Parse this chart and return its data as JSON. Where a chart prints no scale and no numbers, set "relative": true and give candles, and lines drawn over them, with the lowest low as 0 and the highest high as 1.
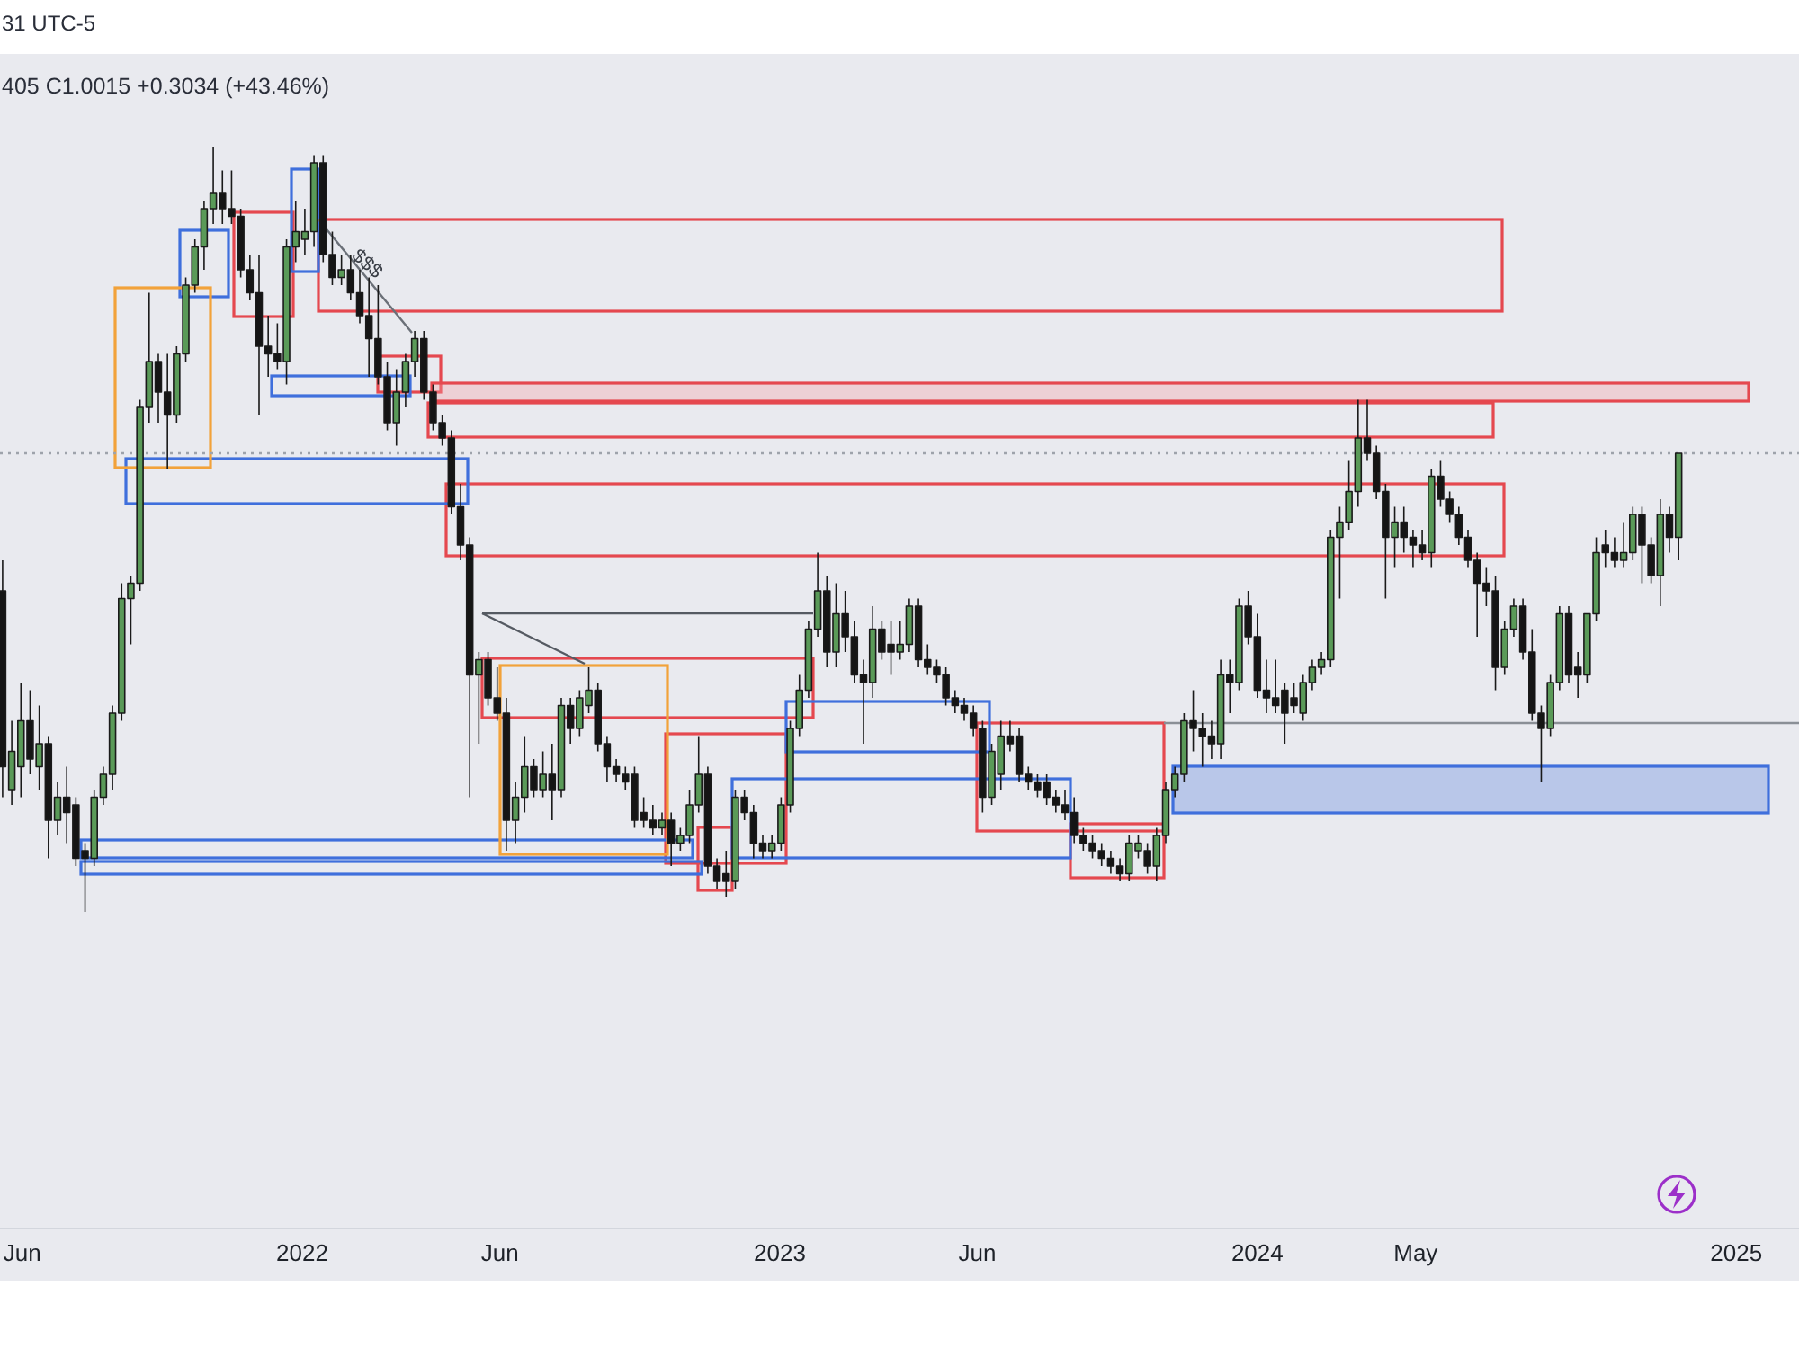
{
  "chart_data": {
    "type": "candlestick",
    "relative": true,
    "tick_labels": "x",
    "xlim": [
      "2021-05-15",
      "2025-02-18"
    ],
    "xticks": [
      {
        "value": "2021-06-01",
        "label": "Jun"
      },
      {
        "value": "2022-01-01",
        "label": "2022"
      },
      {
        "value": "2022-06-01",
        "label": "Jun"
      },
      {
        "value": "2023-01-01",
        "label": "2023"
      },
      {
        "value": "2023-06-01",
        "label": "Jun"
      },
      {
        "value": "2024-01-01",
        "label": "2024"
      },
      {
        "value": "2024-05-01",
        "label": "May"
      },
      {
        "value": "2025-01-01",
        "label": "2025"
      }
    ],
    "x": [
      "2021-05-17",
      "2021-05-24",
      "2021-05-31",
      "2021-06-07",
      "2021-06-14",
      "2021-06-21",
      "2021-06-28",
      "2021-07-05",
      "2021-07-12",
      "2021-07-19",
      "2021-07-26",
      "2021-08-02",
      "2021-08-09",
      "2021-08-16",
      "2021-08-23",
      "2021-08-30",
      "2021-09-06",
      "2021-09-13",
      "2021-09-20",
      "2021-09-27",
      "2021-10-04",
      "2021-10-11",
      "2021-10-18",
      "2021-10-25",
      "2021-11-01",
      "2021-11-08",
      "2021-11-15",
      "2021-11-22",
      "2021-11-29",
      "2021-12-06",
      "2021-12-13",
      "2021-12-20",
      "2021-12-27",
      "2022-01-03",
      "2022-01-10",
      "2022-01-17",
      "2022-01-24",
      "2022-01-31",
      "2022-02-07",
      "2022-02-14",
      "2022-02-21",
      "2022-02-28",
      "2022-03-07",
      "2022-03-14",
      "2022-03-21",
      "2022-03-28",
      "2022-04-04",
      "2022-04-11",
      "2022-04-18",
      "2022-04-25",
      "2022-05-02",
      "2022-05-09",
      "2022-05-16",
      "2022-05-23",
      "2022-05-30",
      "2022-06-06",
      "2022-06-13",
      "2022-06-20",
      "2022-06-27",
      "2022-07-04",
      "2022-07-11",
      "2022-07-18",
      "2022-07-25",
      "2022-08-01",
      "2022-08-08",
      "2022-08-15",
      "2022-08-22",
      "2022-08-29",
      "2022-09-05",
      "2022-09-12",
      "2022-09-19",
      "2022-09-26",
      "2022-10-03",
      "2022-10-10",
      "2022-10-17",
      "2022-10-24",
      "2022-10-31",
      "2022-11-07",
      "2022-11-14",
      "2022-11-21",
      "2022-11-28",
      "2022-12-05",
      "2022-12-12",
      "2022-12-19",
      "2022-12-26",
      "2023-01-02",
      "2023-01-09",
      "2023-01-16",
      "2023-01-23",
      "2023-01-30",
      "2023-02-06",
      "2023-02-13",
      "2023-02-20",
      "2023-02-27",
      "2023-03-06",
      "2023-03-13",
      "2023-03-20",
      "2023-03-27",
      "2023-04-03",
      "2023-04-10",
      "2023-04-17",
      "2023-04-24",
      "2023-05-01",
      "2023-05-08",
      "2023-05-15",
      "2023-05-22",
      "2023-05-29",
      "2023-06-05",
      "2023-06-12",
      "2023-06-19",
      "2023-06-26",
      "2023-07-03",
      "2023-07-10",
      "2023-07-17",
      "2023-07-24",
      "2023-07-31",
      "2023-08-07",
      "2023-08-14",
      "2023-08-21",
      "2023-08-28",
      "2023-09-04",
      "2023-09-11",
      "2023-09-18",
      "2023-09-25",
      "2023-10-02",
      "2023-10-09",
      "2023-10-16",
      "2023-10-23",
      "2023-10-30",
      "2023-11-06",
      "2023-11-13",
      "2023-11-20",
      "2023-11-27",
      "2023-12-04",
      "2023-12-11",
      "2023-12-18",
      "2023-12-25",
      "2024-01-01",
      "2024-01-08",
      "2024-01-15",
      "2024-01-22",
      "2024-01-29",
      "2024-02-05",
      "2024-02-12",
      "2024-02-19",
      "2024-02-26",
      "2024-03-04",
      "2024-03-11",
      "2024-03-18",
      "2024-03-25",
      "2024-04-01",
      "2024-04-08",
      "2024-04-15",
      "2024-04-22",
      "2024-04-29",
      "2024-05-06",
      "2024-05-13",
      "2024-05-20",
      "2024-05-27",
      "2024-06-03",
      "2024-06-10",
      "2024-06-17",
      "2024-06-24",
      "2024-07-01",
      "2024-07-08",
      "2024-07-15",
      "2024-07-22",
      "2024-07-29",
      "2024-08-05",
      "2024-08-12",
      "2024-08-19",
      "2024-08-26",
      "2024-09-02",
      "2024-09-09",
      "2024-09-16",
      "2024-09-23",
      "2024-09-30",
      "2024-10-07",
      "2024-10-14",
      "2024-10-21",
      "2024-10-28",
      "2024-11-04",
      "2024-11-11",
      "2024-11-18"
    ],
    "ohlc": [
      [
        0.42,
        0.46,
        0.15,
        0.19
      ],
      [
        0.16,
        0.25,
        0.14,
        0.21
      ],
      [
        0.19,
        0.3,
        0.15,
        0.25
      ],
      [
        0.25,
        0.29,
        0.18,
        0.2
      ],
      [
        0.19,
        0.27,
        0.16,
        0.22
      ],
      [
        0.22,
        0.23,
        0.07,
        0.12
      ],
      [
        0.12,
        0.17,
        0.1,
        0.15
      ],
      [
        0.15,
        0.19,
        0.09,
        0.13
      ],
      [
        0.14,
        0.15,
        0.06,
        0.07
      ],
      [
        0.08,
        0.09,
        0,
        0.07
      ],
      [
        0.07,
        0.16,
        0.06,
        0.15
      ],
      [
        0.15,
        0.19,
        0.14,
        0.18
      ],
      [
        0.18,
        0.27,
        0.16,
        0.26
      ],
      [
        0.26,
        0.43,
        0.25,
        0.41
      ],
      [
        0.41,
        0.44,
        0.35,
        0.43
      ],
      [
        0.43,
        0.67,
        0.42,
        0.66
      ],
      [
        0.66,
        0.81,
        0.64,
        0.72
      ],
      [
        0.72,
        0.73,
        0.64,
        0.68
      ],
      [
        0.68,
        0.73,
        0.58,
        0.65
      ],
      [
        0.65,
        0.74,
        0.64,
        0.73
      ],
      [
        0.73,
        0.83,
        0.72,
        0.82
      ],
      [
        0.82,
        0.88,
        0.81,
        0.87
      ],
      [
        0.87,
        0.93,
        0.84,
        0.92
      ],
      [
        0.92,
        1,
        0.9,
        0.94
      ],
      [
        0.94,
        0.97,
        0.9,
        0.92
      ],
      [
        0.92,
        0.97,
        0.9,
        0.91
      ],
      [
        0.91,
        0.92,
        0.83,
        0.84
      ],
      [
        0.84,
        0.86,
        0.8,
        0.81
      ],
      [
        0.81,
        0.86,
        0.65,
        0.74
      ],
      [
        0.74,
        0.78,
        0.7,
        0.73
      ],
      [
        0.73,
        0.77,
        0.71,
        0.72
      ],
      [
        0.72,
        0.88,
        0.69,
        0.87
      ],
      [
        0.87,
        0.93,
        0.85,
        0.89
      ],
      [
        0.88,
        0.92,
        0.86,
        0.89
      ],
      [
        0.89,
        0.99,
        0.87,
        0.98
      ],
      [
        0.98,
        0.99,
        0.85,
        0.86
      ],
      [
        0.86,
        0.89,
        0.82,
        0.83
      ],
      [
        0.83,
        0.86,
        0.82,
        0.84
      ],
      [
        0.84,
        0.86,
        0.8,
        0.81
      ],
      [
        0.81,
        0.84,
        0.77,
        0.78
      ],
      [
        0.78,
        0.83,
        0.7,
        0.75
      ],
      [
        0.75,
        0.82,
        0.69,
        0.7
      ],
      [
        0.7,
        0.72,
        0.63,
        0.64
      ],
      [
        0.64,
        0.71,
        0.61,
        0.68
      ],
      [
        0.68,
        0.73,
        0.66,
        0.72
      ],
      [
        0.72,
        0.76,
        0.7,
        0.75
      ],
      [
        0.75,
        0.76,
        0.67,
        0.68
      ],
      [
        0.68,
        0.69,
        0.63,
        0.64
      ],
      [
        0.64,
        0.65,
        0.61,
        0.62
      ],
      [
        0.62,
        0.63,
        0.52,
        0.53
      ],
      [
        0.53,
        0.56,
        0.46,
        0.48
      ],
      [
        0.48,
        0.49,
        0.15,
        0.31
      ],
      [
        0.31,
        0.34,
        0.22,
        0.33
      ],
      [
        0.33,
        0.34,
        0.27,
        0.28
      ],
      [
        0.28,
        0.32,
        0.25,
        0.26
      ],
      [
        0.26,
        0.28,
        0.08,
        0.12
      ],
      [
        0.12,
        0.17,
        0.09,
        0.15
      ],
      [
        0.15,
        0.23,
        0.13,
        0.19
      ],
      [
        0.19,
        0.2,
        0.15,
        0.16
      ],
      [
        0.16,
        0.21,
        0.15,
        0.18
      ],
      [
        0.18,
        0.22,
        0.12,
        0.16
      ],
      [
        0.16,
        0.28,
        0.15,
        0.27
      ],
      [
        0.27,
        0.28,
        0.22,
        0.24
      ],
      [
        0.24,
        0.29,
        0.23,
        0.28
      ],
      [
        0.27,
        0.32,
        0.26,
        0.29
      ],
      [
        0.29,
        0.3,
        0.21,
        0.22
      ],
      [
        0.22,
        0.23,
        0.17,
        0.19
      ],
      [
        0.19,
        0.2,
        0.17,
        0.18
      ],
      [
        0.18,
        0.19,
        0.16,
        0.17
      ],
      [
        0.18,
        0.19,
        0.11,
        0.12
      ],
      [
        0.13,
        0.15,
        0.11,
        0.12
      ],
      [
        0.12,
        0.14,
        0.1,
        0.11
      ],
      [
        0.11,
        0.13,
        0.1,
        0.12
      ],
      [
        0.12,
        0.13,
        0.06,
        0.09
      ],
      [
        0.09,
        0.11,
        0.08,
        0.1
      ],
      [
        0.1,
        0.16,
        0.09,
        0.14
      ],
      [
        0.14,
        0.23,
        0.13,
        0.18
      ],
      [
        0.18,
        0.19,
        0.05,
        0.06
      ],
      [
        0.06,
        0.07,
        0.03,
        0.04
      ],
      [
        0.05,
        0.08,
        0.02,
        0.04
      ],
      [
        0.04,
        0.16,
        0.03,
        0.15
      ],
      [
        0.15,
        0.16,
        0.12,
        0.13
      ],
      [
        0.13,
        0.14,
        0.07,
        0.09
      ],
      [
        0.09,
        0.1,
        0.07,
        0.08
      ],
      [
        0.08,
        0.1,
        0.07,
        0.09
      ],
      [
        0.09,
        0.15,
        0.08,
        0.14
      ],
      [
        0.14,
        0.25,
        0.13,
        0.24
      ],
      [
        0.24,
        0.31,
        0.23,
        0.29
      ],
      [
        0.29,
        0.38,
        0.28,
        0.37
      ],
      [
        0.37,
        0.47,
        0.36,
        0.42
      ],
      [
        0.42,
        0.44,
        0.32,
        0.34
      ],
      [
        0.34,
        0.43,
        0.32,
        0.39
      ],
      [
        0.39,
        0.42,
        0.34,
        0.36
      ],
      [
        0.36,
        0.38,
        0.3,
        0.31
      ],
      [
        0.31,
        0.33,
        0.22,
        0.3
      ],
      [
        0.3,
        0.4,
        0.28,
        0.37
      ],
      [
        0.37,
        0.38,
        0.33,
        0.34
      ],
      [
        0.35,
        0.38,
        0.31,
        0.34
      ],
      [
        0.34,
        0.38,
        0.33,
        0.35
      ],
      [
        0.35,
        0.41,
        0.34,
        0.4
      ],
      [
        0.4,
        0.41,
        0.32,
        0.33
      ],
      [
        0.33,
        0.35,
        0.31,
        0.32
      ],
      [
        0.32,
        0.33,
        0.3,
        0.31
      ],
      [
        0.31,
        0.32,
        0.27,
        0.28
      ],
      [
        0.28,
        0.29,
        0.26,
        0.27
      ],
      [
        0.27,
        0.28,
        0.25,
        0.26
      ],
      [
        0.26,
        0.27,
        0.23,
        0.24
      ],
      [
        0.24,
        0.25,
        0.13,
        0.15
      ],
      [
        0.15,
        0.22,
        0.14,
        0.21
      ],
      [
        0.18,
        0.25,
        0.16,
        0.23
      ],
      [
        0.23,
        0.25,
        0.21,
        0.22
      ],
      [
        0.23,
        0.24,
        0.17,
        0.18
      ],
      [
        0.18,
        0.19,
        0.16,
        0.17
      ],
      [
        0.17,
        0.18,
        0.15,
        0.16
      ],
      [
        0.17,
        0.18,
        0.14,
        0.15
      ],
      [
        0.15,
        0.16,
        0.13,
        0.14
      ],
      [
        0.14,
        0.16,
        0.12,
        0.13
      ],
      [
        0.13,
        0.15,
        0.09,
        0.1
      ],
      [
        0.1,
        0.11,
        0.08,
        0.09
      ],
      [
        0.09,
        0.1,
        0.07,
        0.08
      ],
      [
        0.08,
        0.09,
        0.06,
        0.07
      ],
      [
        0.07,
        0.08,
        0.05,
        0.06
      ],
      [
        0.06,
        0.07,
        0.04,
        0.05
      ],
      [
        0.05,
        0.1,
        0.04,
        0.09
      ],
      [
        0.08,
        0.1,
        0.07,
        0.09
      ],
      [
        0.08,
        0.09,
        0.05,
        0.06
      ],
      [
        0.06,
        0.11,
        0.04,
        0.1
      ],
      [
        0.1,
        0.17,
        0.09,
        0.16
      ],
      [
        0.16,
        0.19,
        0.15,
        0.18
      ],
      [
        0.18,
        0.26,
        0.17,
        0.25
      ],
      [
        0.25,
        0.29,
        0.21,
        0.24
      ],
      [
        0.24,
        0.26,
        0.19,
        0.23
      ],
      [
        0.23,
        0.25,
        0.2,
        0.22
      ],
      [
        0.22,
        0.33,
        0.2,
        0.31
      ],
      [
        0.31,
        0.33,
        0.26,
        0.3
      ],
      [
        0.3,
        0.41,
        0.29,
        0.4
      ],
      [
        0.4,
        0.42,
        0.35,
        0.36
      ],
      [
        0.36,
        0.39,
        0.28,
        0.29
      ],
      [
        0.29,
        0.33,
        0.26,
        0.28
      ],
      [
        0.28,
        0.33,
        0.26,
        0.27
      ],
      [
        0.29,
        0.3,
        0.22,
        0.26
      ],
      [
        0.28,
        0.3,
        0.26,
        0.27
      ],
      [
        0.26,
        0.31,
        0.25,
        0.3
      ],
      [
        0.3,
        0.33,
        0.29,
        0.32
      ],
      [
        0.32,
        0.34,
        0.31,
        0.33
      ],
      [
        0.33,
        0.5,
        0.32,
        0.49
      ],
      [
        0.49,
        0.53,
        0.41,
        0.51
      ],
      [
        0.51,
        0.59,
        0.5,
        0.55
      ],
      [
        0.55,
        0.67,
        0.53,
        0.62
      ],
      [
        0.62,
        0.67,
        0.59,
        0.6
      ],
      [
        0.6,
        0.61,
        0.54,
        0.55
      ],
      [
        0.55,
        0.56,
        0.41,
        0.49
      ],
      [
        0.49,
        0.53,
        0.45,
        0.51
      ],
      [
        0.51,
        0.53,
        0.47,
        0.49
      ],
      [
        0.49,
        0.5,
        0.45,
        0.48
      ],
      [
        0.48,
        0.5,
        0.46,
        0.47
      ],
      [
        0.47,
        0.58,
        0.45,
        0.57
      ],
      [
        0.57,
        0.59,
        0.53,
        0.54
      ],
      [
        0.54,
        0.55,
        0.51,
        0.52
      ],
      [
        0.52,
        0.53,
        0.48,
        0.49
      ],
      [
        0.49,
        0.5,
        0.45,
        0.46
      ],
      [
        0.46,
        0.47,
        0.36,
        0.43
      ],
      [
        0.43,
        0.45,
        0.4,
        0.42
      ],
      [
        0.42,
        0.44,
        0.29,
        0.32
      ],
      [
        0.32,
        0.38,
        0.31,
        0.37
      ],
      [
        0.37,
        0.41,
        0.36,
        0.4
      ],
      [
        0.4,
        0.41,
        0.33,
        0.34
      ],
      [
        0.34,
        0.37,
        0.25,
        0.26
      ],
      [
        0.26,
        0.27,
        0.17,
        0.24
      ],
      [
        0.24,
        0.31,
        0.23,
        0.3
      ],
      [
        0.3,
        0.4,
        0.29,
        0.39
      ],
      [
        0.39,
        0.4,
        0.3,
        0.31
      ],
      [
        0.32,
        0.34,
        0.28,
        0.31
      ],
      [
        0.31,
        0.39,
        0.3,
        0.39
      ],
      [
        0.39,
        0.49,
        0.38,
        0.47
      ],
      [
        0.48,
        0.5,
        0.45,
        0.47
      ],
      [
        0.47,
        0.49,
        0.45,
        0.46
      ],
      [
        0.46,
        0.51,
        0.45,
        0.47
      ],
      [
        0.47,
        0.53,
        0.46,
        0.52
      ],
      [
        0.52,
        0.53,
        0.43,
        0.48
      ],
      [
        0.48,
        0.49,
        0.43,
        0.44
      ],
      [
        0.44,
        0.54,
        0.4,
        0.52
      ],
      [
        0.52,
        0.53,
        0.47,
        0.49
      ],
      [
        0.49,
        0.6,
        0.46,
        0.6
      ]
    ],
    "colors": [
      "#151515",
      "#5a9a58",
      "#5a9a58",
      "#151515",
      "#5a9a58",
      "#151515",
      "#5a9a58",
      "#151515",
      "#151515",
      "#151515",
      "#5a9a58",
      "#5a9a58",
      "#5a9a58",
      "#5a9a58",
      "#5a9a58",
      "#5a9a58",
      "#5a9a58",
      "#151515",
      "#151515",
      "#5a9a58",
      "#5a9a58",
      "#5a9a58",
      "#5a9a58",
      "#5a9a58",
      "#151515",
      "#151515",
      "#151515",
      "#151515",
      "#151515",
      "#151515",
      "#151515",
      "#5a9a58",
      "#5a9a58",
      "#5a9a58",
      "#5a9a58",
      "#151515",
      "#151515",
      "#5a9a58",
      "#151515",
      "#151515",
      "#151515",
      "#151515",
      "#151515",
      "#5a9a58",
      "#5a9a58",
      "#5a9a58",
      "#151515",
      "#151515",
      "#151515",
      "#151515",
      "#151515",
      "#151515",
      "#5a9a58",
      "#151515",
      "#151515",
      "#151515",
      "#5a9a58",
      "#5a9a58",
      "#151515",
      "#5a9a58",
      "#151515",
      "#5a9a58",
      "#151515",
      "#5a9a58",
      "#5a9a58",
      "#151515",
      "#151515",
      "#151515",
      "#151515",
      "#151515",
      "#151515",
      "#151515",
      "#5a9a58",
      "#151515",
      "#5a9a58",
      "#5a9a58",
      "#5a9a58",
      "#151515",
      "#151515",
      "#151515",
      "#5a9a58",
      "#151515",
      "#151515",
      "#151515",
      "#5a9a58",
      "#5a9a58",
      "#5a9a58",
      "#5a9a58",
      "#5a9a58",
      "#5a9a58",
      "#151515",
      "#5a9a58",
      "#151515",
      "#151515",
      "#151515",
      "#5a9a58",
      "#151515",
      "#151515",
      "#5a9a58",
      "#5a9a58",
      "#151515",
      "#151515",
      "#151515",
      "#151515",
      "#151515",
      "#151515",
      "#151515",
      "#151515",
      "#5a9a58",
      "#5a9a58",
      "#151515",
      "#151515",
      "#151515",
      "#151515",
      "#151515",
      "#151515",
      "#151515",
      "#151515",
      "#151515",
      "#151515",
      "#151515",
      "#151515",
      "#151515",
      "#5a9a58",
      "#5a9a58",
      "#151515",
      "#5a9a58",
      "#5a9a58",
      "#5a9a58",
      "#5a9a58",
      "#151515",
      "#151515",
      "#151515",
      "#5a9a58",
      "#151515",
      "#5a9a58",
      "#151515",
      "#151515",
      "#151515",
      "#151515",
      "#151515",
      "#151515",
      "#5a9a58",
      "#5a9a58",
      "#5a9a58",
      "#5a9a58",
      "#5a9a58",
      "#5a9a58",
      "#5a9a58",
      "#151515",
      "#151515",
      "#151515",
      "#5a9a58",
      "#151515",
      "#151515",
      "#151515",
      "#5a9a58",
      "#151515",
      "#151515",
      "#151515",
      "#151515",
      "#151515",
      "#151515",
      "#151515",
      "#5a9a58",
      "#5a9a58",
      "#151515",
      "#151515",
      "#151515",
      "#5a9a58",
      "#5a9a58",
      "#151515",
      "#151515",
      "#5a9a58",
      "#5a9a58",
      "#151515",
      "#151515",
      "#5a9a58",
      "#5a9a58",
      "#151515",
      "#151515",
      "#5a9a58",
      "#151515",
      "#5a9a58"
    ],
    "ref_lines": [
      {
        "axis": "y",
        "value": 0.6,
        "color": "#9ea3ab",
        "line_style": "dotted"
      }
    ],
    "annotations": [
      "31 UTC-5",
      "405 C1.0015 +0.3034 (+43.46%)",
      "$$$"
    ]
  }
}
